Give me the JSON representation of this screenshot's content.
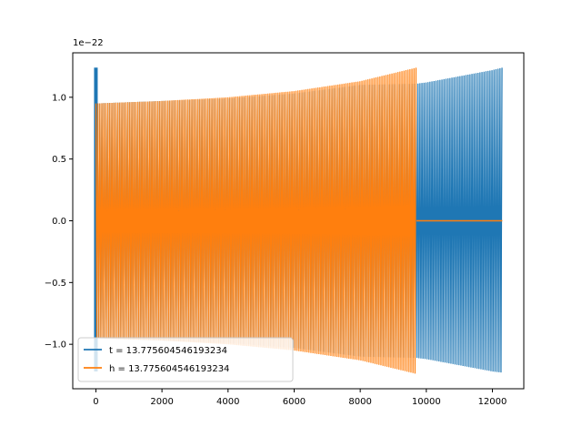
{
  "chart_data": {
    "type": "line",
    "title": "",
    "xlabel": "",
    "ylabel": "",
    "y_offset_label": "1e−22",
    "xlim": [
      -700,
      12950
    ],
    "ylim": [
      -1.36,
      1.36
    ],
    "xticks": [
      0,
      2000,
      4000,
      6000,
      8000,
      10000,
      12000
    ],
    "xtick_labels": [
      "0",
      "2000",
      "4000",
      "6000",
      "8000",
      "10000",
      "12000"
    ],
    "yticks": [
      -1.0,
      -0.5,
      0.0,
      0.5,
      1.0
    ],
    "ytick_labels": [
      "−1.0",
      "−0.5",
      "0.0",
      "0.5",
      "1.0"
    ],
    "grid": false,
    "legend_position": "lower-left",
    "series": [
      {
        "name": "t = 13.775604546193234",
        "color": "#1f77b4",
        "description": "oscillating signal, amplitude envelope rising from about 0.95 to 1.24 over x 0 to 12300; brief spike near x 0",
        "spike": {
          "x": 0,
          "ymin": -1.22,
          "ymax": 1.24
        },
        "envelope": {
          "x": [
            0,
            2000,
            4000,
            6000,
            8000,
            9700,
            10000,
            12000,
            12300
          ],
          "upper": [
            0.95,
            0.97,
            0.99,
            1.03,
            1.1,
            1.11,
            1.12,
            1.22,
            1.24
          ],
          "lower": [
            -0.95,
            -0.97,
            -0.99,
            -1.03,
            -1.1,
            -1.11,
            -1.12,
            -1.22,
            -1.23
          ]
        }
      },
      {
        "name": "h = 13.775604546193234",
        "color": "#ff7f0e",
        "description": "oscillating signal, amplitude envelope rising from about 0.95 to 1.24 over x 0 to 9700, then flat at 0 until 12300",
        "envelope": {
          "x": [
            0,
            2000,
            4000,
            6000,
            8000,
            9700
          ],
          "upper": [
            0.95,
            0.97,
            1.0,
            1.05,
            1.13,
            1.24
          ],
          "lower": [
            -0.95,
            -0.97,
            -1.0,
            -1.05,
            -1.13,
            -1.24
          ]
        },
        "zero_segment": {
          "x": [
            9700,
            12300
          ],
          "y": 0
        }
      }
    ]
  }
}
